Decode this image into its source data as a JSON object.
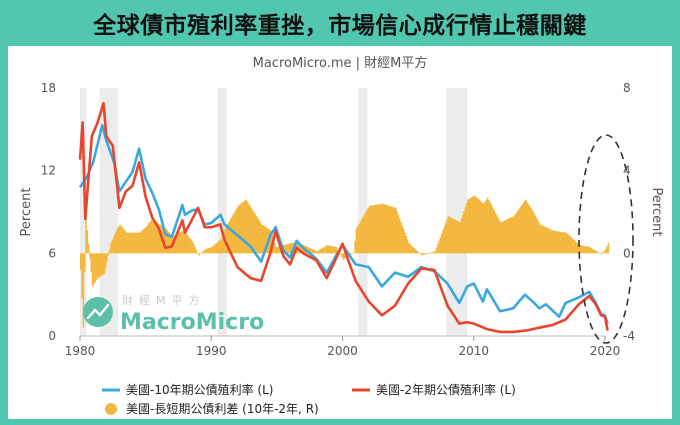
{
  "header": {
    "title": "全球債市殖利率重挫，市場信心成行情止穩關鍵",
    "subtitle": "MacroMicro.me | 財經M平方"
  },
  "watermark": {
    "cn": "財經M平方",
    "en": "MacroMicro"
  },
  "colors": {
    "frame": "#50c7ae",
    "ten_year": "#3aa7de",
    "two_year": "#e8452f",
    "spread": "#f4b73d",
    "recession": "#ececec"
  },
  "chart_data": {
    "type": "line",
    "x_ticks": [
      "1980",
      "1990",
      "2000",
      "2010",
      "2020"
    ],
    "y_left": {
      "label": "Percent",
      "ticks": [
        "0",
        "6",
        "12",
        "18"
      ],
      "range": [
        0,
        18
      ]
    },
    "y_right": {
      "label": "Percent",
      "ticks": [
        "-4",
        "0",
        "4",
        "8"
      ],
      "range": [
        -4,
        8
      ]
    },
    "recession_shading": [
      [
        1980.0,
        1980.5
      ],
      [
        1981.5,
        1982.9
      ],
      [
        1990.5,
        1991.2
      ],
      [
        2001.2,
        2001.9
      ],
      [
        2007.9,
        2009.5
      ]
    ],
    "series": [
      {
        "name": "美國-10年期公債殖利率 (L)",
        "type": "line",
        "points": [
          [
            1980,
            10.8
          ],
          [
            1980.5,
            11.5
          ],
          [
            1981,
            12.6
          ],
          [
            1981.7,
            15.3
          ],
          [
            1982,
            14.2
          ],
          [
            1982.6,
            12.6
          ],
          [
            1983,
            10.5
          ],
          [
            1983.5,
            11.2
          ],
          [
            1984,
            11.9
          ],
          [
            1984.5,
            13.6
          ],
          [
            1985,
            11.4
          ],
          [
            1985.5,
            10.4
          ],
          [
            1986,
            9.2
          ],
          [
            1986.5,
            7.4
          ],
          [
            1987,
            7.2
          ],
          [
            1987.8,
            9.5
          ],
          [
            1988,
            8.8
          ],
          [
            1988.5,
            9.1
          ],
          [
            1989,
            9.2
          ],
          [
            1989.5,
            8.1
          ],
          [
            1990,
            8.2
          ],
          [
            1990.7,
            8.8
          ],
          [
            1991,
            8.1
          ],
          [
            1992,
            7.3
          ],
          [
            1993,
            6.5
          ],
          [
            1993.8,
            5.4
          ],
          [
            1994.5,
            7.3
          ],
          [
            1994.9,
            7.9
          ],
          [
            1995.5,
            6.2
          ],
          [
            1996,
            5.7
          ],
          [
            1996.5,
            6.9
          ],
          [
            1997,
            6.4
          ],
          [
            1998,
            5.6
          ],
          [
            1998.8,
            4.6
          ],
          [
            1999.5,
            5.8
          ],
          [
            2000,
            6.6
          ],
          [
            2001,
            5.2
          ],
          [
            2002,
            5.0
          ],
          [
            2003,
            3.6
          ],
          [
            2004,
            4.6
          ],
          [
            2005,
            4.3
          ],
          [
            2006,
            5.0
          ],
          [
            2007,
            4.7
          ],
          [
            2008,
            3.8
          ],
          [
            2008.9,
            2.4
          ],
          [
            2009.5,
            3.6
          ],
          [
            2010,
            3.8
          ],
          [
            2010.7,
            2.5
          ],
          [
            2011,
            3.4
          ],
          [
            2012,
            1.8
          ],
          [
            2013,
            2.0
          ],
          [
            2013.9,
            3.0
          ],
          [
            2014.5,
            2.5
          ],
          [
            2015,
            2.0
          ],
          [
            2015.5,
            2.3
          ],
          [
            2016.5,
            1.4
          ],
          [
            2017,
            2.4
          ],
          [
            2018,
            2.8
          ],
          [
            2018.8,
            3.2
          ],
          [
            2019.3,
            2.4
          ],
          [
            2019.7,
            1.6
          ],
          [
            2020,
            1.5
          ],
          [
            2020.2,
            0.9
          ]
        ]
      },
      {
        "name": "美國-2年期公債殖利率 (L)",
        "type": "line",
        "points": [
          [
            1980,
            12.8
          ],
          [
            1980.2,
            15.5
          ],
          [
            1980.4,
            8.5
          ],
          [
            1980.9,
            14.5
          ],
          [
            1981.3,
            15.4
          ],
          [
            1981.8,
            16.9
          ],
          [
            1982,
            14.5
          ],
          [
            1982.5,
            13.8
          ],
          [
            1983,
            9.3
          ],
          [
            1983.5,
            10.5
          ],
          [
            1984,
            10.9
          ],
          [
            1984.5,
            12.6
          ],
          [
            1985,
            10.1
          ],
          [
            1985.5,
            8.6
          ],
          [
            1986,
            7.8
          ],
          [
            1986.5,
            6.4
          ],
          [
            1987,
            6.5
          ],
          [
            1987.8,
            8.4
          ],
          [
            1988,
            7.5
          ],
          [
            1988.5,
            8.4
          ],
          [
            1989,
            9.3
          ],
          [
            1989.5,
            7.9
          ],
          [
            1990,
            7.9
          ],
          [
            1990.7,
            8.1
          ],
          [
            1991,
            7.0
          ],
          [
            1992,
            5.0
          ],
          [
            1993,
            4.2
          ],
          [
            1993.8,
            4.0
          ],
          [
            1994.5,
            6.0
          ],
          [
            1994.9,
            7.6
          ],
          [
            1995.5,
            5.8
          ],
          [
            1996,
            5.2
          ],
          [
            1996.5,
            6.4
          ],
          [
            1997,
            6.0
          ],
          [
            1998,
            5.5
          ],
          [
            1998.8,
            4.2
          ],
          [
            1999.5,
            5.6
          ],
          [
            2000,
            6.7
          ],
          [
            2001,
            4.0
          ],
          [
            2002,
            2.5
          ],
          [
            2003,
            1.5
          ],
          [
            2004,
            2.2
          ],
          [
            2005,
            3.8
          ],
          [
            2006,
            4.9
          ],
          [
            2007,
            4.8
          ],
          [
            2008,
            2.2
          ],
          [
            2008.9,
            0.9
          ],
          [
            2009.5,
            1.0
          ],
          [
            2010,
            0.9
          ],
          [
            2011,
            0.5
          ],
          [
            2012,
            0.3
          ],
          [
            2013,
            0.3
          ],
          [
            2014,
            0.4
          ],
          [
            2015,
            0.6
          ],
          [
            2016,
            0.8
          ],
          [
            2017,
            1.2
          ],
          [
            2018,
            2.3
          ],
          [
            2018.8,
            2.9
          ],
          [
            2019.3,
            2.3
          ],
          [
            2019.7,
            1.5
          ],
          [
            2020,
            1.4
          ],
          [
            2020.2,
            0.4
          ]
        ]
      },
      {
        "name": "美國-長短期公債利差 (10年-2年, R)",
        "type": "area",
        "points": [
          [
            1980,
            -0.8
          ],
          [
            1980.2,
            -3.6
          ],
          [
            1980.4,
            1.8
          ],
          [
            1980.9,
            -1.6
          ],
          [
            1981.3,
            -1.2
          ],
          [
            1981.8,
            -1.0
          ],
          [
            1982.3,
            0.5
          ],
          [
            1982.8,
            1.2
          ],
          [
            1983,
            1.4
          ],
          [
            1983.5,
            1.0
          ],
          [
            1984,
            1.0
          ],
          [
            1984.5,
            1.0
          ],
          [
            1985,
            1.3
          ],
          [
            1985.5,
            1.7
          ],
          [
            1986,
            1.4
          ],
          [
            1986.5,
            1.2
          ],
          [
            1987,
            0.8
          ],
          [
            1987.8,
            1.1
          ],
          [
            1988,
            1.0
          ],
          [
            1988.5,
            0.6
          ],
          [
            1989,
            -0.1
          ],
          [
            1989.5,
            0.2
          ],
          [
            1990,
            0.3
          ],
          [
            1990.7,
            0.7
          ],
          [
            1991,
            1.2
          ],
          [
            1992,
            2.3
          ],
          [
            1992.6,
            2.6
          ],
          [
            1993,
            2.2
          ],
          [
            1993.8,
            1.4
          ],
          [
            1994.5,
            1.1
          ],
          [
            1994.9,
            0.3
          ],
          [
            1995.5,
            0.4
          ],
          [
            1996,
            0.5
          ],
          [
            1996.5,
            0.5
          ],
          [
            1997,
            0.4
          ],
          [
            1998,
            0.1
          ],
          [
            1998.8,
            0.4
          ],
          [
            1999.5,
            0.3
          ],
          [
            2000,
            -0.3
          ],
          [
            2000.8,
            0.0
          ],
          [
            2001,
            1.2
          ],
          [
            2002,
            2.3
          ],
          [
            2003,
            2.4
          ],
          [
            2004,
            2.2
          ],
          [
            2005,
            0.5
          ],
          [
            2006,
            -0.1
          ],
          [
            2007,
            0.1
          ],
          [
            2008,
            1.8
          ],
          [
            2008.9,
            1.5
          ],
          [
            2009.5,
            2.6
          ],
          [
            2010,
            2.8
          ],
          [
            2010.7,
            2.4
          ],
          [
            2011,
            2.7
          ],
          [
            2012,
            1.5
          ],
          [
            2013,
            1.8
          ],
          [
            2013.9,
            2.6
          ],
          [
            2014.5,
            2.0
          ],
          [
            2015,
            1.4
          ],
          [
            2016,
            1.1
          ],
          [
            2017,
            1.0
          ],
          [
            2018,
            0.4
          ],
          [
            2018.8,
            0.3
          ],
          [
            2019.3,
            0.1
          ],
          [
            2019.7,
            -0.05
          ],
          [
            2020,
            0.2
          ],
          [
            2020.2,
            0.5
          ]
        ]
      }
    ]
  }
}
